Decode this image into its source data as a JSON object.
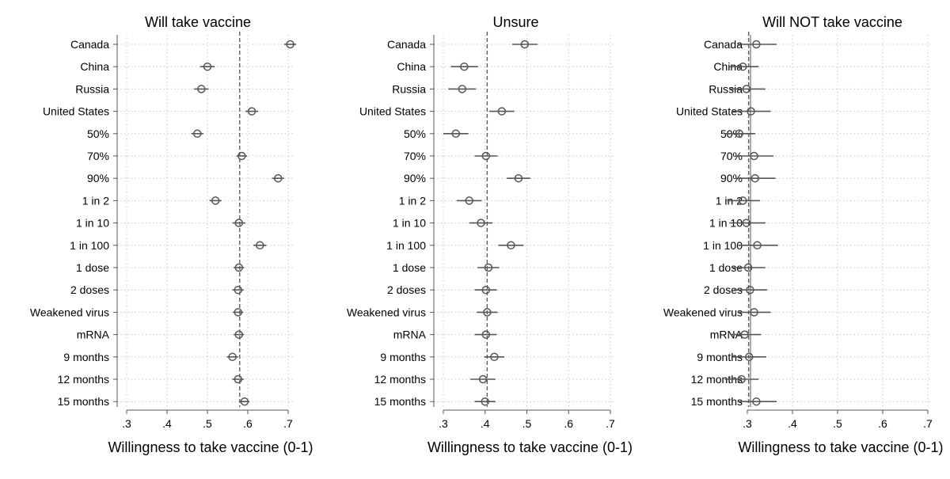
{
  "chart_data": [
    {
      "type": "scatter",
      "title": "Will take vaccine",
      "xlabel": "Willingness to take vaccine (0-1)",
      "xlim": [
        0.3,
        0.7
      ],
      "xticks": [
        ".3",
        ".4",
        ".5",
        ".6",
        ".7"
      ],
      "reference_line": 0.58,
      "grid": true,
      "categories": [
        "Canada",
        "China",
        "Russia",
        "United States",
        "50%",
        "70%",
        "90%",
        "1 in 2",
        "1 in 10",
        "1 in 100",
        "1 dose",
        "2 doses",
        "Weakened virus",
        "mRNA",
        "9 months",
        "12 months",
        "15 months"
      ],
      "estimates": [
        0.705,
        0.5,
        0.485,
        0.61,
        0.475,
        0.585,
        0.675,
        0.52,
        0.578,
        0.63,
        0.578,
        0.576,
        0.576,
        0.578,
        0.562,
        0.576,
        0.592
      ],
      "ci_low": [
        0.69,
        0.482,
        0.467,
        0.594,
        0.46,
        0.572,
        0.66,
        0.505,
        0.562,
        0.614,
        0.565,
        0.562,
        0.563,
        0.565,
        0.548,
        0.562,
        0.58
      ],
      "ci_high": [
        0.72,
        0.518,
        0.503,
        0.626,
        0.49,
        0.598,
        0.69,
        0.535,
        0.594,
        0.646,
        0.591,
        0.59,
        0.589,
        0.591,
        0.576,
        0.59,
        0.604
      ]
    },
    {
      "type": "scatter",
      "title": "Unsure",
      "xlabel": "Willingness to take vaccine (0-1)",
      "xlim": [
        0.3,
        0.7
      ],
      "xticks": [
        ".3",
        ".4",
        ".5",
        ".6",
        ".7"
      ],
      "reference_line": 0.405,
      "grid": true,
      "categories": [
        "Canada",
        "China",
        "Russia",
        "United States",
        "50%",
        "70%",
        "90%",
        "1 in 2",
        "1 in 10",
        "1 in 100",
        "1 dose",
        "2 doses",
        "Weakened virus",
        "mRNA",
        "9 months",
        "12 months",
        "15 months"
      ],
      "estimates": [
        0.495,
        0.35,
        0.345,
        0.44,
        0.33,
        0.402,
        0.48,
        0.362,
        0.39,
        0.462,
        0.408,
        0.402,
        0.405,
        0.402,
        0.422,
        0.395,
        0.4
      ],
      "ci_low": [
        0.465,
        0.318,
        0.312,
        0.41,
        0.3,
        0.375,
        0.452,
        0.332,
        0.362,
        0.432,
        0.382,
        0.375,
        0.38,
        0.375,
        0.398,
        0.365,
        0.375
      ],
      "ci_high": [
        0.525,
        0.383,
        0.378,
        0.47,
        0.36,
        0.43,
        0.508,
        0.392,
        0.418,
        0.492,
        0.434,
        0.428,
        0.43,
        0.428,
        0.446,
        0.425,
        0.425
      ]
    },
    {
      "type": "scatter",
      "title": "Will NOT take vaccine",
      "xlabel": "Willingness to take vaccine (0-1)",
      "xlim": [
        0.3,
        0.7
      ],
      "xticks": [
        ".3",
        ".4",
        ".5",
        ".6",
        ".7"
      ],
      "reference_line": 0.303,
      "grid": true,
      "categories": [
        "Canada",
        "China",
        "Russia",
        "United States",
        "50%",
        "70%",
        "90%",
        "1 in 2",
        "1 in 10",
        "1 in 100",
        "1 dose",
        "2 doses",
        "Weakened virus",
        "mRNA",
        "9 months",
        "12 months",
        "15 months"
      ],
      "estimates": [
        0.32,
        0.29,
        0.298,
        0.308,
        0.282,
        0.315,
        0.317,
        0.29,
        0.298,
        0.322,
        0.302,
        0.306,
        0.315,
        0.294,
        0.304,
        0.287,
        0.32
      ],
      "ci_low": [
        0.278,
        0.258,
        0.26,
        0.265,
        0.248,
        0.275,
        0.275,
        0.255,
        0.26,
        0.28,
        0.265,
        0.27,
        0.278,
        0.262,
        0.268,
        0.25,
        0.278
      ],
      "ci_high": [
        0.365,
        0.325,
        0.34,
        0.352,
        0.318,
        0.358,
        0.362,
        0.328,
        0.34,
        0.368,
        0.34,
        0.344,
        0.352,
        0.33,
        0.342,
        0.325,
        0.365
      ]
    }
  ]
}
